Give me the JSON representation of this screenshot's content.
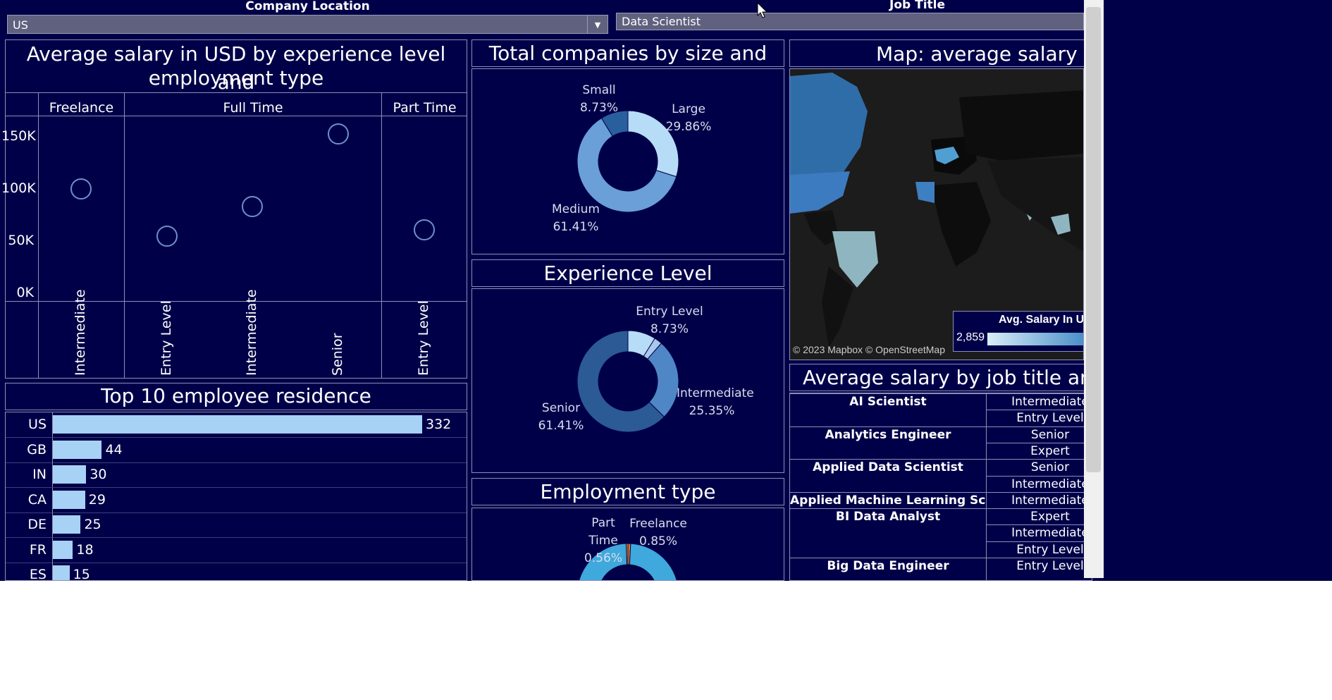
{
  "filters": {
    "company_location": {
      "label": "Company Location",
      "value": "US"
    },
    "job_title": {
      "label": "Job Title",
      "value": "Data Scientist"
    }
  },
  "scatter": {
    "title_line1": "Average salary in USD by experience level and",
    "title_line2": "employment type",
    "columns": [
      "Freelance",
      "Full Time",
      "Part Time"
    ],
    "y_ticks": [
      "150K",
      "100K",
      "50K",
      "0K"
    ]
  },
  "residence": {
    "title": "Top 10 employee residence"
  },
  "company_size": {
    "title": "Total companies by size and location"
  },
  "experience": {
    "title": "Experience Level"
  },
  "employment": {
    "title": "Employment type"
  },
  "map": {
    "title": "Map: average salary by co",
    "attribution": "© 2023 Mapbox © OpenStreetMap",
    "legend_title": "Avg. Salary In Us",
    "legend_min": "2,859"
  },
  "jobtable": {
    "title": "Average salary by job title and exp",
    "rows": [
      {
        "title": "AI Scientist",
        "exp": "Intermediate"
      },
      {
        "title": "",
        "exp": "Entry Level"
      },
      {
        "title": "Analytics Engineer",
        "exp": "Senior"
      },
      {
        "title": "",
        "exp": "Expert"
      },
      {
        "title": "Applied Data Scientist",
        "exp": "Senior"
      },
      {
        "title": "",
        "exp": "Intermediate"
      },
      {
        "title": "Applied Machine Learning Scienti..",
        "exp": "Intermediate"
      },
      {
        "title": "BI Data Analyst",
        "exp": "Expert"
      },
      {
        "title": "",
        "exp": "Intermediate"
      },
      {
        "title": "",
        "exp": "Entry Level"
      },
      {
        "title": "Big Data Engineer",
        "exp": "Entry Level"
      }
    ]
  },
  "chart_data": [
    {
      "type": "scatter",
      "title": "Average salary in USD by experience level and employment type",
      "panels": [
        "Freelance",
        "Full Time",
        "Part Time"
      ],
      "categories": [
        "Intermediate",
        "Entry Level",
        "Intermediate",
        "Senior",
        "Entry Level"
      ],
      "panel_of_category": [
        "Freelance",
        "Full Time",
        "Full Time",
        "Full Time",
        "Part Time"
      ],
      "values": [
        100000,
        55000,
        83000,
        153000,
        61000
      ],
      "ylim": [
        0,
        165000
      ],
      "y_ticks": [
        0,
        50000,
        100000,
        150000
      ]
    },
    {
      "type": "bar",
      "title": "Top 10 employee residence",
      "categories": [
        "US",
        "GB",
        "IN",
        "CA",
        "DE",
        "FR",
        "ES"
      ],
      "values": [
        332,
        44,
        30,
        29,
        25,
        18,
        15
      ]
    },
    {
      "type": "pie",
      "title": "Total companies by size and location",
      "categories": [
        "Large",
        "Medium",
        "Small"
      ],
      "values": [
        29.86,
        61.41,
        8.73
      ],
      "labels": [
        "29.86%",
        "61.41%",
        "8.73%"
      ],
      "colors": [
        "#b7dcf7",
        "#6a9fd8",
        "#2a5f9e"
      ]
    },
    {
      "type": "pie",
      "title": "Experience Level",
      "categories": [
        "Entry Level",
        "Intermediate",
        "Senior"
      ],
      "values": [
        8.73,
        25.35,
        61.41
      ],
      "labels": [
        "8.73%",
        "25.35%",
        "61.41%"
      ],
      "colors": [
        "#b7dcf7",
        "#4f86c6",
        "#2b5a94"
      ]
    },
    {
      "type": "pie",
      "title": "Employment type",
      "categories": [
        "Part Time",
        "Freelance"
      ],
      "values": [
        0.56,
        0.85
      ],
      "labels": [
        "0.56%",
        "0.85%"
      ],
      "colors": [
        "#f0a030",
        "#d9792b",
        "#3fa8dc"
      ]
    }
  ]
}
